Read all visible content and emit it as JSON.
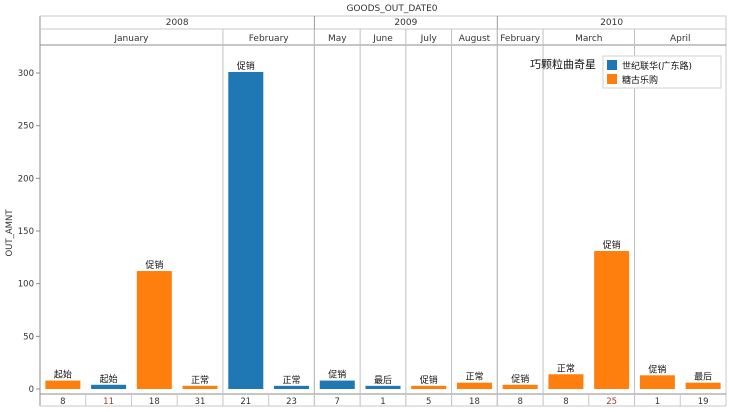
{
  "chart_data": {
    "type": "bar",
    "title": "GOODS_OUT_DATE0",
    "ylabel": "OUT_AMNT",
    "ylim": [
      0,
      320
    ],
    "yticks": [
      0,
      50,
      100,
      150,
      200,
      250,
      300
    ],
    "grid": false,
    "legend_position": "top-right",
    "filter_label": "巧颗粒曲奇星",
    "years": [
      {
        "label": "2008",
        "months": [
          "January",
          "February"
        ]
      },
      {
        "label": "2009",
        "months": [
          "May",
          "June",
          "July",
          "August"
        ]
      },
      {
        "label": "2010",
        "months": [
          "February",
          "March",
          "April"
        ]
      }
    ],
    "series": [
      {
        "name": "世纪联华(广东路)",
        "color": "#1f77b4"
      },
      {
        "name": "糖古乐购",
        "color": "#ff7f0e"
      }
    ],
    "bars": [
      {
        "year": "2008",
        "month": "January",
        "day": "8",
        "value": 8,
        "series": 1,
        "label": "起始"
      },
      {
        "year": "2008",
        "month": "January",
        "day": "11",
        "value": 4,
        "series": 0,
        "label": "起始"
      },
      {
        "year": "2008",
        "month": "January",
        "day": "18",
        "value": 112,
        "series": 1,
        "label": "促销"
      },
      {
        "year": "2008",
        "month": "January",
        "day": "31",
        "value": 3,
        "series": 1,
        "label": "正常"
      },
      {
        "year": "2008",
        "month": "February",
        "day": "21",
        "value": 301,
        "series": 0,
        "label": "促销"
      },
      {
        "year": "2008",
        "month": "February",
        "day": "23",
        "value": 3,
        "series": 0,
        "label": "正常"
      },
      {
        "year": "2009",
        "month": "May",
        "day": "7",
        "value": 8,
        "series": 0,
        "label": "促销"
      },
      {
        "year": "2009",
        "month": "June",
        "day": "1",
        "value": 3,
        "series": 0,
        "label": "最后"
      },
      {
        "year": "2009",
        "month": "July",
        "day": "5",
        "value": 3,
        "series": 1,
        "label": "促销"
      },
      {
        "year": "2009",
        "month": "August",
        "day": "18",
        "value": 6,
        "series": 1,
        "label": "正常"
      },
      {
        "year": "2010",
        "month": "February",
        "day": "8",
        "value": 4,
        "series": 1,
        "label": "促销"
      },
      {
        "year": "2010",
        "month": "March",
        "day": "8",
        "value": 14,
        "series": 1,
        "label": "正常"
      },
      {
        "year": "2010",
        "month": "March",
        "day": "25",
        "value": 131,
        "series": 1,
        "label": "促销"
      },
      {
        "year": "2010",
        "month": "April",
        "day": "1",
        "value": 13,
        "series": 1,
        "label": "促销"
      },
      {
        "year": "2010",
        "month": "April",
        "day": "19",
        "value": 6,
        "series": 1,
        "label": "最后"
      }
    ]
  }
}
